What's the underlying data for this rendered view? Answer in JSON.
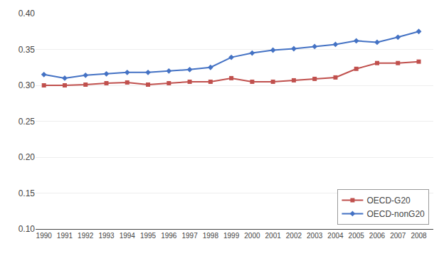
{
  "chart_data": {
    "type": "line",
    "x": [
      1990,
      1991,
      1992,
      1993,
      1994,
      1995,
      1996,
      1997,
      1998,
      1999,
      2000,
      2001,
      2002,
      2003,
      2004,
      2005,
      2006,
      2007,
      2008
    ],
    "series": [
      {
        "name": "OECD-G20",
        "color": "#C0504D",
        "marker": "square",
        "values": [
          0.3,
          0.3,
          0.301,
          0.303,
          0.304,
          0.301,
          0.303,
          0.305,
          0.305,
          0.31,
          0.305,
          0.305,
          0.307,
          0.309,
          0.311,
          0.323,
          0.331,
          0.331,
          0.333
        ]
      },
      {
        "name": "OECD-nonG20",
        "color": "#4472C4",
        "marker": "diamond",
        "values": [
          0.315,
          0.31,
          0.314,
          0.316,
          0.318,
          0.318,
          0.32,
          0.322,
          0.325,
          0.339,
          0.345,
          0.349,
          0.351,
          0.354,
          0.357,
          0.362,
          0.36,
          0.367,
          0.375
        ]
      }
    ],
    "xlim": [
      1989.6,
      2008.7
    ],
    "xticks": [
      1990,
      1991,
      1992,
      1993,
      1994,
      1995,
      1996,
      1997,
      1998,
      1999,
      2000,
      2001,
      2002,
      2003,
      2004,
      2005,
      2006,
      2007,
      2008
    ],
    "ylim": [
      0.1,
      0.4
    ],
    "yticks": [
      {
        "value": 0.1,
        "label": "0.10"
      },
      0.15,
      {
        "value": 0.2,
        "label": "0.20"
      },
      0.25,
      {
        "value": 0.3,
        "label": "0.30"
      },
      0.35,
      {
        "value": 0.4,
        "label": "0.40"
      }
    ],
    "grid": true,
    "legend": "lower right"
  }
}
